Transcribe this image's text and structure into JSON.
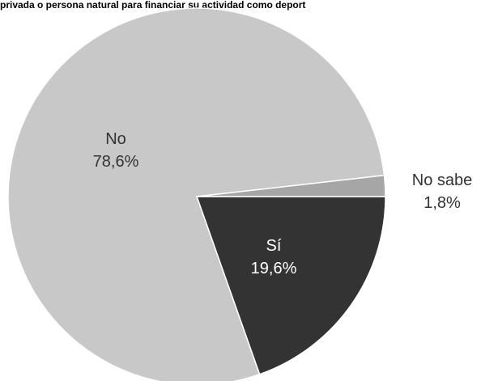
{
  "chart_data": {
    "type": "pie",
    "title": "privada o persona natural para financiar su actividad como deport",
    "slices": [
      {
        "label": "No",
        "value": 78.6,
        "value_label": "78,6%",
        "color": "#c8c8c8"
      },
      {
        "label": "Sí",
        "value": 19.6,
        "value_label": "19,6%",
        "color": "#333333",
        "text_color": "#ffffff"
      },
      {
        "label": "No sabe",
        "value": 1.8,
        "value_label": "1,8%",
        "color": "#a6a6a6"
      }
    ]
  }
}
